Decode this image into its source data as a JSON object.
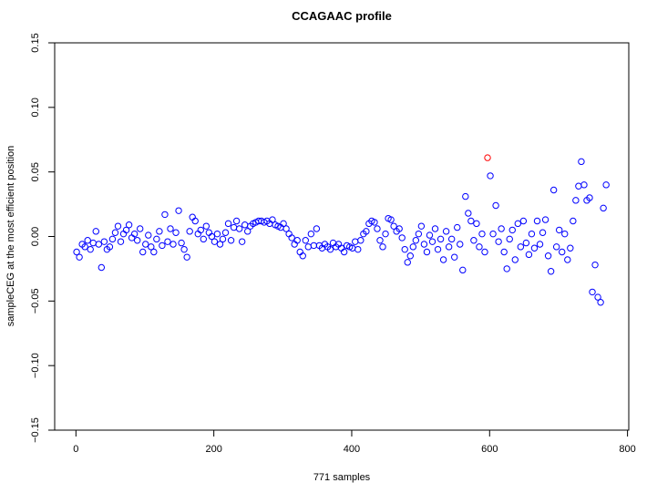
{
  "chart_data": {
    "type": "scatter",
    "title": "CCAGAAC profile",
    "xlabel": "771 samples",
    "ylabel": "sampleCEG at the most efficient position",
    "xlim": [
      -30.84,
      801.84
    ],
    "ylim": [
      -0.15,
      0.15
    ],
    "xticks": [
      0,
      200,
      400,
      600,
      800
    ],
    "xtick_labels": [
      "0",
      "200",
      "400",
      "600",
      "800"
    ],
    "yticks": [
      0.15,
      0.1,
      0.05,
      0.0,
      -0.05,
      -0.1,
      -0.15
    ],
    "ytick_labels": [
      "0.15",
      "0.10",
      "0.05",
      "0.00",
      "−0.05",
      "−0.10",
      "−0.15"
    ],
    "grid": false,
    "point_color": "#0000ff",
    "highlight_color": "#ff0000",
    "highlight_x": 597,
    "x_start": 1,
    "x_step": 4,
    "y": [
      -0.012,
      -0.016,
      -0.006,
      -0.008,
      -0.003,
      -0.01,
      -0.005,
      0.004,
      -0.006,
      -0.024,
      -0.004,
      -0.01,
      -0.008,
      -0.002,
      0.003,
      0.008,
      -0.004,
      0.002,
      0.005,
      0.009,
      -0.001,
      0.002,
      -0.003,
      0.006,
      -0.012,
      -0.006,
      0.001,
      -0.008,
      -0.012,
      -0.002,
      0.004,
      -0.007,
      0.017,
      -0.004,
      0.006,
      -0.006,
      0.003,
      0.02,
      -0.005,
      -0.01,
      -0.016,
      0.004,
      0.015,
      0.012,
      0.002,
      0.005,
      -0.002,
      0.008,
      0.003,
      0.0,
      -0.004,
      0.002,
      -0.006,
      -0.002,
      0.003,
      0.01,
      -0.003,
      0.007,
      0.012,
      0.006,
      -0.004,
      0.009,
      0.004,
      0.008,
      0.01,
      0.011,
      0.012,
      0.012,
      0.011,
      0.012,
      0.01,
      0.013,
      0.009,
      0.008,
      0.007,
      0.01,
      0.006,
      0.002,
      -0.001,
      -0.006,
      -0.003,
      -0.012,
      -0.015,
      -0.003,
      -0.008,
      0.002,
      -0.007,
      0.006,
      -0.007,
      -0.009,
      -0.006,
      -0.008,
      -0.01,
      -0.005,
      -0.008,
      -0.006,
      -0.009,
      -0.012,
      -0.007,
      -0.008,
      -0.009,
      -0.004,
      -0.01,
      -0.003,
      0.002,
      0.004,
      0.01,
      0.012,
      0.011,
      0.006,
      -0.003,
      -0.008,
      0.002,
      0.014,
      0.013,
      0.008,
      0.004,
      0.006,
      -0.001,
      -0.01,
      -0.02,
      -0.015,
      -0.008,
      -0.003,
      0.002,
      0.008,
      -0.006,
      -0.012,
      0.001,
      -0.004,
      0.006,
      -0.01,
      -0.002,
      -0.018,
      0.004,
      -0.008,
      -0.002,
      -0.016,
      0.007,
      -0.006,
      -0.026,
      0.031,
      0.018,
      0.012,
      -0.003,
      0.01,
      -0.008,
      0.002,
      -0.012,
      0.061,
      0.047,
      0.002,
      0.024,
      -0.004,
      0.006,
      -0.012,
      -0.025,
      -0.002,
      0.005,
      -0.018,
      0.01,
      -0.008,
      0.012,
      -0.005,
      -0.014,
      0.002,
      -0.009,
      0.012,
      -0.006,
      0.003,
      0.013,
      -0.015,
      -0.027,
      0.036,
      -0.008,
      0.005,
      -0.012,
      0.002,
      -0.018,
      -0.009,
      0.012,
      0.028,
      0.039,
      0.058,
      0.04,
      0.028,
      0.03,
      -0.043,
      -0.022,
      -0.047,
      -0.051,
      0.022,
      0.04
    ]
  }
}
